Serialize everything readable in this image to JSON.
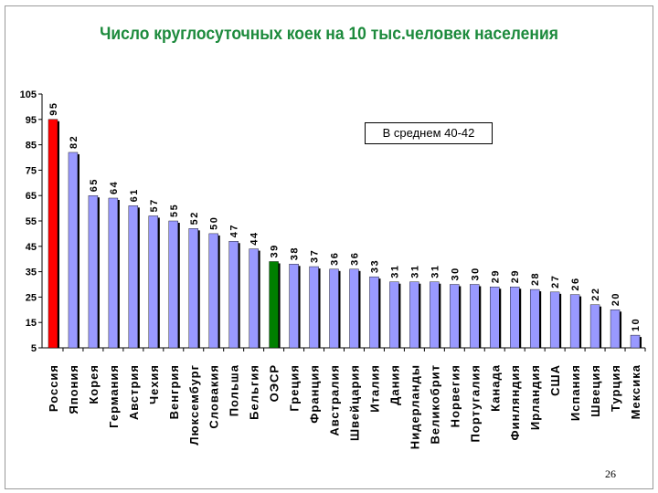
{
  "chart_data": {
    "type": "bar",
    "title": "Число круглосуточных коек на 10 тыс.человек населения",
    "categories": [
      "Россия",
      "Япония",
      "Корея",
      "Германия",
      "Австрия",
      "Чехия",
      "Венгрия",
      "Люксембург",
      "Словакия",
      "Польша",
      "Бельгия",
      "ОЭСР",
      "Греция",
      "Франция",
      "Австралия",
      "Швейцария",
      "Италия",
      "Дания",
      "Нидерланды",
      "Великобрит",
      "Норвегия",
      "Португалия",
      "Канада",
      "Финляндия",
      "Ирландия",
      "США",
      "Испания",
      "Швеция",
      "Турция",
      "Мексика"
    ],
    "values": [
      95,
      82,
      65,
      64,
      61,
      57,
      55,
      52,
      50,
      47,
      44,
      39,
      38,
      37,
      36,
      36,
      33,
      31,
      31,
      31,
      30,
      30,
      29,
      29,
      28,
      27,
      26,
      22,
      20,
      10
    ],
    "data_labels": [
      "95",
      "82",
      "65",
      "64",
      "61",
      "57",
      "55",
      "52",
      "50",
      "47",
      "44",
      "39",
      "38",
      "37",
      "36",
      "36",
      "33",
      "31",
      "31",
      "31",
      "30",
      "30",
      "29",
      "29",
      "28",
      "27",
      "26",
      "22",
      "20",
      "10"
    ],
    "ylim": [
      5,
      105
    ],
    "yticks": [
      "105",
      "95",
      "85",
      "75",
      "65",
      "55",
      "45",
      "35",
      "25",
      "15",
      "5"
    ],
    "colors": {
      "default": "#9999ff",
      "highlight_russia": "#ff0000",
      "highlight_oecd": "#008000",
      "shadow": "#000000"
    },
    "highlight": {
      "Россия": "#ff0000",
      "ОЭСР": "#008000"
    },
    "grid": false,
    "legend": "none"
  },
  "annotation": "В среднем 40-42",
  "page_number": "26"
}
